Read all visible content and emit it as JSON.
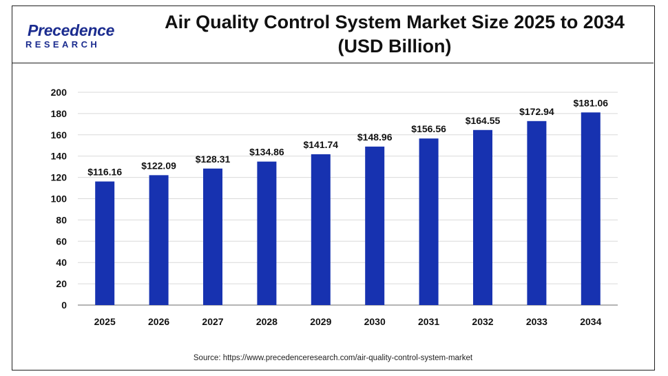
{
  "header": {
    "logo_name": "Precedence",
    "logo_sub": "RESEARCH",
    "title_line1": "Air Quality Control System Market Size 2025 to 2034",
    "title_line2": "(USD Billion)"
  },
  "footer": {
    "source": "Source: https://www.precedenceresearch.com/air-quality-control-system-market"
  },
  "colors": {
    "bar": "#1732b0",
    "grid": "#d9d9d9",
    "axis": "#888888"
  },
  "chart_data": {
    "type": "bar",
    "title": "Air Quality Control System Market Size 2025 to 2034 (USD Billion)",
    "categories": [
      "2025",
      "2026",
      "2027",
      "2028",
      "2029",
      "2030",
      "2031",
      "2032",
      "2033",
      "2034"
    ],
    "values": [
      116.16,
      122.09,
      128.31,
      134.86,
      141.74,
      148.96,
      156.56,
      164.55,
      172.94,
      181.06
    ],
    "data_labels": [
      "$116.16",
      "$122.09",
      "$128.31",
      "$134.86",
      "$141.74",
      "$148.96",
      "$156.56",
      "$164.55",
      "$172.94",
      "$181.06"
    ],
    "yticks": [
      0,
      20,
      40,
      60,
      80,
      100,
      120,
      140,
      160,
      180,
      200
    ],
    "ylim": [
      0,
      200
    ],
    "xlabel": "",
    "ylabel": "",
    "grid": true,
    "legend": "none"
  }
}
